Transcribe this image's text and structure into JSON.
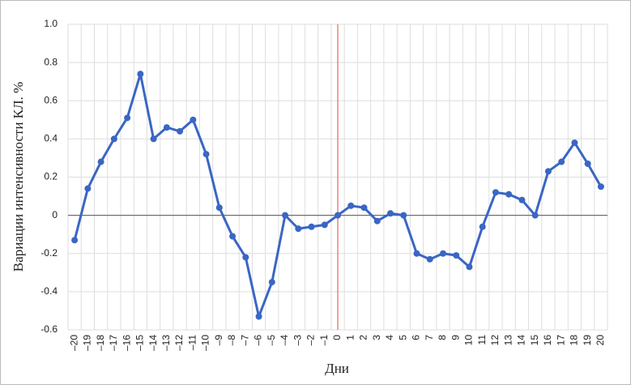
{
  "chart_data": {
    "type": "line",
    "xlabel": "Дни",
    "ylabel": "Вариации интенсивности КЛ. %",
    "x": [
      -20,
      -19,
      -18,
      -17,
      -16,
      -15,
      -14,
      -13,
      -12,
      -11,
      -10,
      -9,
      -8,
      -7,
      -6,
      -5,
      -4,
      -3,
      -2,
      -1,
      0,
      1,
      2,
      3,
      4,
      5,
      6,
      7,
      8,
      9,
      10,
      11,
      12,
      13,
      14,
      15,
      16,
      17,
      18,
      19,
      20
    ],
    "series": [
      {
        "name": "Вариации",
        "color": "#3a66c4",
        "values": [
          -0.13,
          0.14,
          0.28,
          0.4,
          0.51,
          0.74,
          0.4,
          0.46,
          0.44,
          0.5,
          0.32,
          0.04,
          -0.11,
          -0.22,
          -0.53,
          -0.35,
          0.0,
          -0.07,
          -0.06,
          -0.05,
          0.0,
          0.05,
          0.04,
          -0.03,
          0.01,
          0.0,
          -0.2,
          -0.23,
          -0.2,
          -0.21,
          -0.27,
          -0.06,
          0.12,
          0.11,
          0.08,
          0.0,
          0.23,
          0.28,
          0.38,
          0.27,
          0.15
        ]
      }
    ],
    "xlim": [
      -20.5,
      20.5
    ],
    "xticks": [
      {
        "value": -20,
        "label": "–20"
      },
      {
        "value": -19,
        "label": "–19"
      },
      {
        "value": -18,
        "label": "–18"
      },
      {
        "value": -17,
        "label": "–17"
      },
      {
        "value": -16,
        "label": "–16"
      },
      {
        "value": -15,
        "label": "–15"
      },
      {
        "value": -14,
        "label": "–14"
      },
      {
        "value": -13,
        "label": "–13"
      },
      {
        "value": -12,
        "label": "–12"
      },
      {
        "value": -11,
        "label": "–11"
      },
      {
        "value": -10,
        "label": "–10"
      },
      {
        "value": -9,
        "label": "–9"
      },
      {
        "value": -8,
        "label": "–8"
      },
      {
        "value": -7,
        "label": "–7"
      },
      {
        "value": -6,
        "label": "–6"
      },
      {
        "value": -5,
        "label": "–5"
      },
      {
        "value": -4,
        "label": "–4"
      },
      {
        "value": -3,
        "label": "–3"
      },
      {
        "value": -2,
        "label": "–2"
      },
      {
        "value": -1,
        "label": "–1"
      },
      0,
      1,
      2,
      3,
      4,
      5,
      6,
      7,
      8,
      9,
      10,
      11,
      12,
      13,
      14,
      15,
      16,
      17,
      18,
      19,
      20
    ],
    "ylim": [
      -0.6,
      1.0
    ],
    "yticks": [
      -0.6,
      -0.4,
      -0.2,
      0,
      0.2,
      0.4,
      0.6,
      0.8,
      {
        "value": 1.0,
        "label": "1.0"
      }
    ],
    "grid": true,
    "zero_line_color": "#707070",
    "reference_x": 0,
    "reference_color": "#e8837a"
  }
}
